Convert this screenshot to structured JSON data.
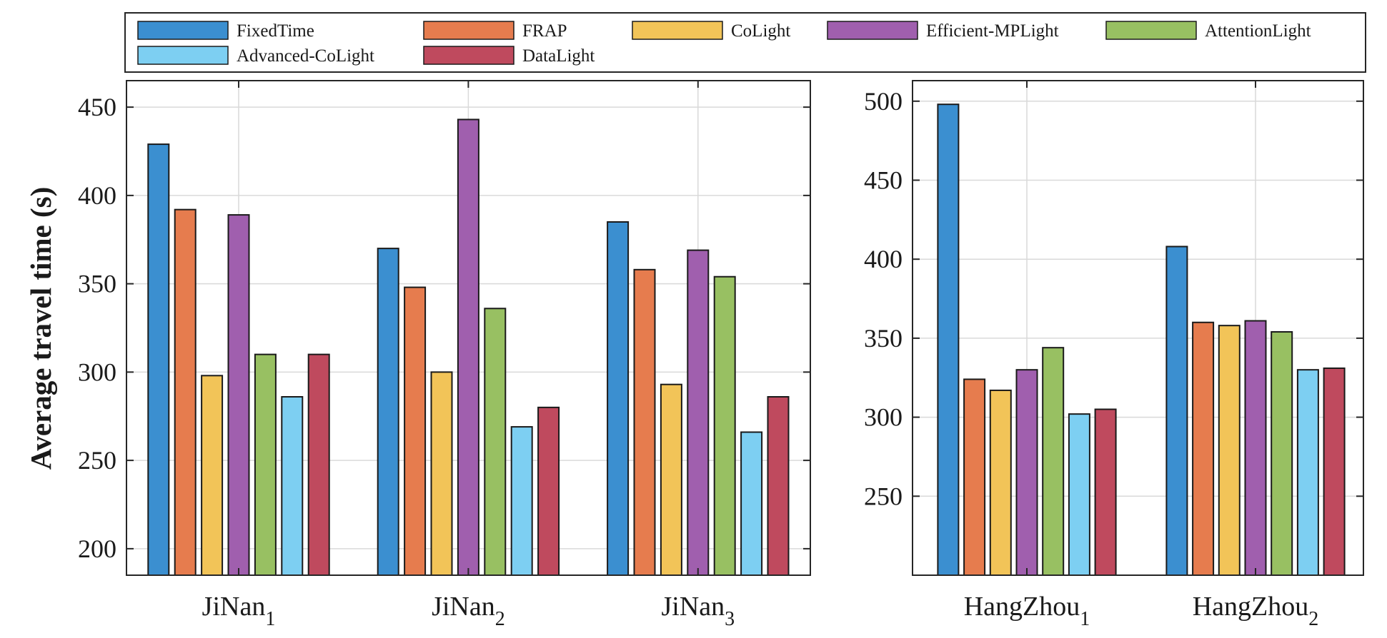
{
  "chart_data": [
    {
      "type": "bar",
      "ylabel": "Average travel time (s)",
      "ylim": [
        185,
        465
      ],
      "yticks": [
        200,
        250,
        300,
        350,
        400,
        450
      ],
      "grid": true,
      "categories": [
        {
          "base": "JiNan",
          "sub": "1"
        },
        {
          "base": "JiNan",
          "sub": "2"
        },
        {
          "base": "JiNan",
          "sub": "3"
        }
      ],
      "series": [
        {
          "name": "FixedTime",
          "values": [
            429,
            370,
            385
          ]
        },
        {
          "name": "FRAP",
          "values": [
            392,
            348,
            358
          ]
        },
        {
          "name": "CoLight",
          "values": [
            298,
            300,
            293
          ]
        },
        {
          "name": "Efficient-MPLight",
          "values": [
            389,
            443,
            369
          ]
        },
        {
          "name": "AttentionLight",
          "values": [
            310,
            336,
            354
          ]
        },
        {
          "name": "Advanced-CoLight",
          "values": [
            286,
            269,
            266
          ]
        },
        {
          "name": "DataLight",
          "values": [
            310,
            280,
            286
          ]
        }
      ]
    },
    {
      "type": "bar",
      "ylabel": "",
      "ylim": [
        200,
        513
      ],
      "yticks": [
        250,
        300,
        350,
        400,
        450,
        500
      ],
      "grid": true,
      "categories": [
        {
          "base": "HangZhou",
          "sub": "1"
        },
        {
          "base": "HangZhou",
          "sub": "2"
        }
      ],
      "series": [
        {
          "name": "FixedTime",
          "values": [
            498,
            408
          ]
        },
        {
          "name": "FRAP",
          "values": [
            324,
            360
          ]
        },
        {
          "name": "CoLight",
          "values": [
            317,
            358
          ]
        },
        {
          "name": "Efficient-MPLight",
          "values": [
            330,
            361
          ]
        },
        {
          "name": "AttentionLight",
          "values": [
            344,
            354
          ]
        },
        {
          "name": "Advanced-CoLight",
          "values": [
            302,
            330
          ]
        },
        {
          "name": "DataLight",
          "values": [
            305,
            331
          ]
        }
      ]
    }
  ],
  "legend": {
    "placement": "top",
    "entries": [
      {
        "label": "FixedTime",
        "color": "#3b8fd0"
      },
      {
        "label": "FRAP",
        "color": "#e67c4e"
      },
      {
        "label": "CoLight",
        "color": "#f2c458"
      },
      {
        "label": "Efficient-MPLight",
        "color": "#a05fae"
      },
      {
        "label": "AttentionLight",
        "color": "#98c062"
      },
      {
        "label": "Advanced-CoLight",
        "color": "#7dcff2"
      },
      {
        "label": "DataLight",
        "color": "#bf4a5e"
      }
    ]
  }
}
